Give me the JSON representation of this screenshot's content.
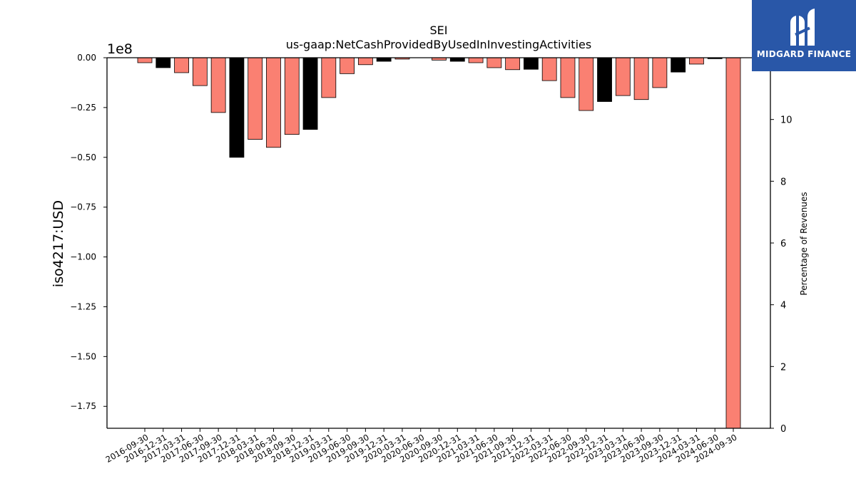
{
  "chart_data": {
    "type": "bar",
    "title": "SEI",
    "subtitle": "us-gaap:NetCashProvidedByUsedInInvestingActivities",
    "ylabel": "iso4217:USD",
    "y_offset_label": "1e8",
    "y2label": "Percentage of Revenues",
    "ylim": [
      -1.86,
      0.0
    ],
    "y_ticks": [
      "0.00",
      "−0.25",
      "−0.50",
      "−0.75",
      "−1.00",
      "−1.25",
      "−1.50",
      "−1.75"
    ],
    "y_tick_values": [
      0,
      -0.25,
      -0.5,
      -0.75,
      -1.0,
      -1.25,
      -1.5,
      -1.75
    ],
    "y2lim": [
      0,
      12
    ],
    "y2_ticks": [
      "0",
      "2",
      "4",
      "6",
      "8",
      "10"
    ],
    "y2_tick_values": [
      0,
      2,
      4,
      6,
      8,
      10
    ],
    "grid": false,
    "legend": "none",
    "categories": [
      "2016-09-30",
      "2016-12-31",
      "2017-03-31",
      "2017-06-30",
      "2017-09-30",
      "2017-12-31",
      "2018-03-31",
      "2018-06-30",
      "2018-09-30",
      "2018-12-31",
      "2019-03-31",
      "2019-06-30",
      "2019-09-30",
      "2019-12-31",
      "2020-03-31",
      "2020-06-30",
      "2020-09-30",
      "2020-12-31",
      "2021-03-31",
      "2021-06-30",
      "2021-09-30",
      "2021-12-31",
      "2022-03-31",
      "2022-06-30",
      "2022-09-30",
      "2022-12-31",
      "2023-03-31",
      "2023-06-30",
      "2023-09-30",
      "2023-12-31",
      "2024-03-31",
      "2024-06-30",
      "2024-09-30"
    ],
    "values": [
      -0.025,
      -0.05,
      -0.075,
      -0.14,
      -0.275,
      -0.5,
      -0.41,
      -0.45,
      -0.385,
      -0.36,
      -0.2,
      -0.08,
      -0.035,
      -0.018,
      -0.007,
      0,
      -0.012,
      -0.018,
      -0.025,
      -0.05,
      -0.06,
      -0.058,
      -0.115,
      -0.2,
      -0.265,
      -0.22,
      -0.19,
      -0.21,
      -0.15,
      -0.072,
      -0.032,
      -0.005,
      -1.86
    ],
    "bar_colors": [
      "#fa8072",
      "#000000",
      "#fa8072",
      "#fa8072",
      "#fa8072",
      "#000000",
      "#fa8072",
      "#fa8072",
      "#fa8072",
      "#000000",
      "#fa8072",
      "#fa8072",
      "#fa8072",
      "#000000",
      "#fa8072",
      "#fa8072",
      "#fa8072",
      "#000000",
      "#fa8072",
      "#fa8072",
      "#fa8072",
      "#000000",
      "#fa8072",
      "#fa8072",
      "#fa8072",
      "#000000",
      "#fa8072",
      "#fa8072",
      "#fa8072",
      "#000000",
      "#fa8072",
      "#000000",
      "#fa8072"
    ]
  },
  "logo": {
    "text": "MIDGARD FINANCE",
    "icon": "midgard-logo-icon",
    "color": "#2957a8"
  }
}
